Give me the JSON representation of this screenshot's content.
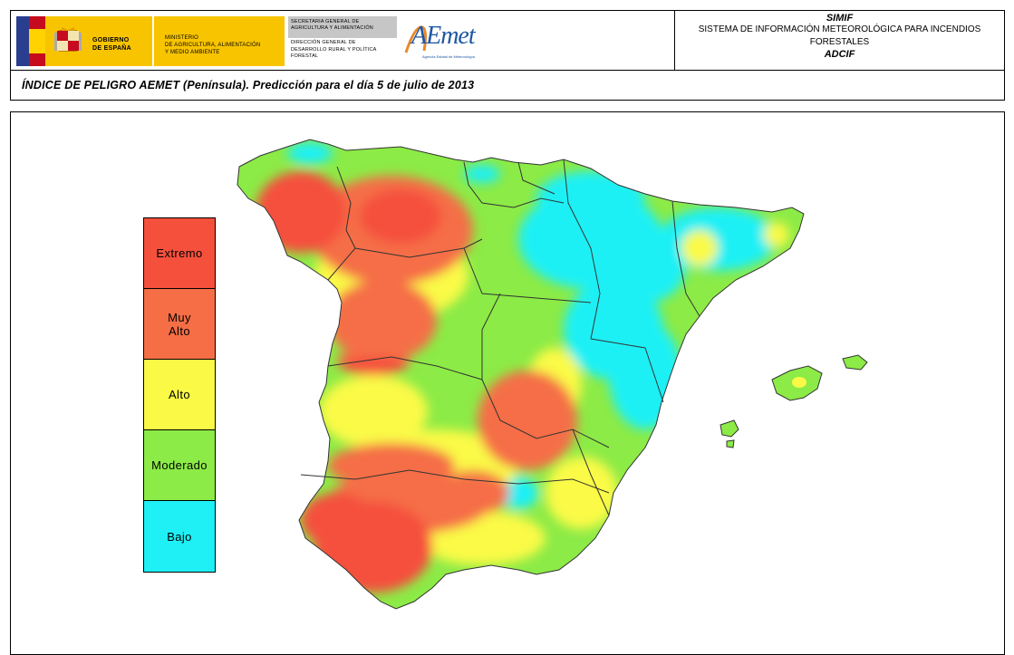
{
  "header": {
    "gov_lines": [
      "GOBIERNO",
      "DE ESPAÑA"
    ],
    "ministry_lines": [
      "MINISTERIO",
      "DE AGRICULTURA, ALIMENTACIÓN",
      "Y MEDIO AMBIENTE"
    ],
    "secretaria_lines": [
      "SECRETARIA GENERAL DE",
      "AGRICULTURA Y ALIMENTACIÓN"
    ],
    "direccion_lines": [
      "DIRECCIÓN GENERAL DE",
      "DESARROLLO RURAL Y POLÍTICA",
      "FORESTAL"
    ],
    "aemet_logo_text": "AEmet",
    "aemet_subtitle": "Agencia Estatal de Meteorología",
    "system_title": "SIMIF",
    "system_lines": [
      "SISTEMA DE INFORMACIÓN METEOROLÓGICA PARA INCENDIOS",
      "FORESTALES"
    ],
    "system_acronym": "ADCIF"
  },
  "title": "ÍNDICE DE PELIGRO AEMET (Península). Predicción para el día 5 de julio de 2013",
  "legend": [
    {
      "label": "Extremo",
      "color": "#f5503c"
    },
    {
      "label": "Muy\nAlto",
      "color": "#f56e46"
    },
    {
      "label": "Alto",
      "color": "#fafa46"
    },
    {
      "label": "Moderado",
      "color": "#8ceb46"
    },
    {
      "label": "Bajo",
      "color": "#1ef0f5"
    }
  ],
  "colors": {
    "extremo": "#f5503c",
    "muy_alto": "#f56e46",
    "alto": "#fafa46",
    "moderado": "#8ceb46",
    "bajo": "#1ef0f5",
    "border": "#333333"
  }
}
